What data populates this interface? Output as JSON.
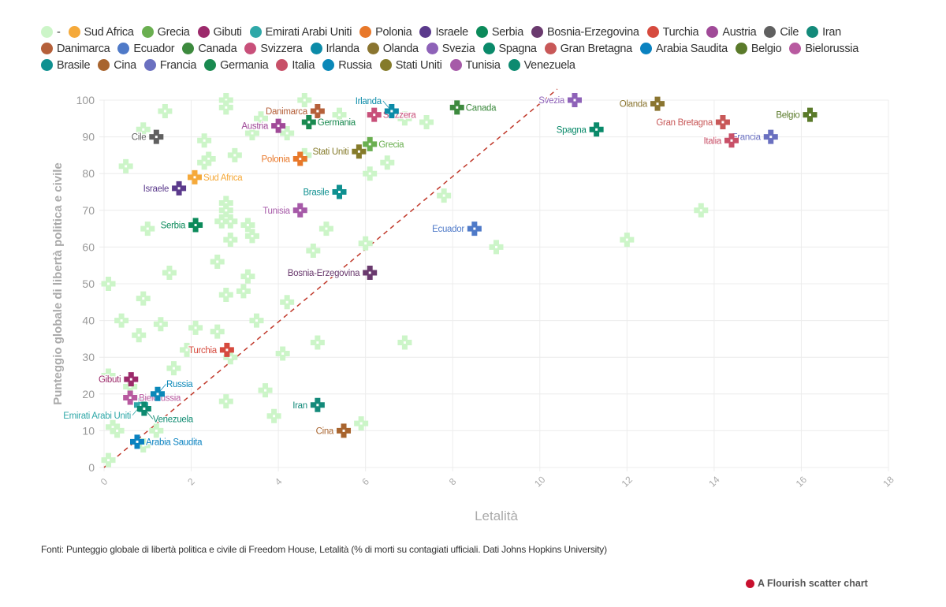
{
  "chart_data": {
    "type": "scatter",
    "xlabel": "Letalità",
    "ylabel": "Punteggio globale di libertà politica e civile",
    "xlim": [
      0,
      18
    ],
    "ylim": [
      0,
      100
    ],
    "xticks": [
      0,
      2,
      4,
      6,
      8,
      10,
      12,
      14,
      16,
      18
    ],
    "yticks": [
      0,
      10,
      20,
      30,
      40,
      50,
      60,
      70,
      80,
      90,
      100
    ],
    "grid": true,
    "legend_position": "top",
    "marker": "cross",
    "reference_line": {
      "style": "dashed",
      "color": "#c0392b",
      "points": [
        [
          0,
          0
        ],
        [
          10.4,
          103
        ]
      ]
    },
    "series": [
      {
        "name": "-",
        "color": "#ccf5c8",
        "labeled": false,
        "points": [
          [
            1.4,
            97
          ],
          [
            2.8,
            100
          ],
          [
            2.8,
            98
          ],
          [
            0.9,
            92
          ],
          [
            2.3,
            89
          ],
          [
            0.5,
            82
          ],
          [
            2.4,
            84
          ],
          [
            2.3,
            83
          ],
          [
            3.0,
            85
          ],
          [
            3.4,
            91
          ],
          [
            3.6,
            95
          ],
          [
            4.2,
            91
          ],
          [
            4.6,
            100
          ],
          [
            4.6,
            85
          ],
          [
            5.4,
            96
          ],
          [
            6.9,
            95
          ],
          [
            7.4,
            94
          ],
          [
            6.1,
            80
          ],
          [
            6.5,
            83
          ],
          [
            7.8,
            74
          ],
          [
            13.7,
            70
          ],
          [
            12.0,
            62
          ],
          [
            9.0,
            60
          ],
          [
            6.0,
            61
          ],
          [
            5.1,
            65
          ],
          [
            4.8,
            59
          ],
          [
            2.8,
            72
          ],
          [
            2.8,
            70
          ],
          [
            2.7,
            67
          ],
          [
            2.9,
            67
          ],
          [
            3.3,
            66
          ],
          [
            3.4,
            63
          ],
          [
            2.9,
            62
          ],
          [
            1.0,
            65
          ],
          [
            2.6,
            56
          ],
          [
            1.5,
            53
          ],
          [
            3.3,
            52
          ],
          [
            0.1,
            50
          ],
          [
            0.9,
            46
          ],
          [
            2.8,
            47
          ],
          [
            3.2,
            48
          ],
          [
            4.2,
            45
          ],
          [
            0.4,
            40
          ],
          [
            1.3,
            39
          ],
          [
            2.1,
            38
          ],
          [
            2.6,
            37
          ],
          [
            3.5,
            40
          ],
          [
            0.8,
            36
          ],
          [
            1.9,
            32
          ],
          [
            4.1,
            31
          ],
          [
            4.9,
            34
          ],
          [
            6.9,
            34
          ],
          [
            1.6,
            27
          ],
          [
            2.9,
            30
          ],
          [
            0.1,
            25
          ],
          [
            0.6,
            22
          ],
          [
            3.7,
            21
          ],
          [
            2.8,
            18
          ],
          [
            0.2,
            11
          ],
          [
            0.3,
            10
          ],
          [
            1.2,
            10
          ],
          [
            3.9,
            14
          ],
          [
            5.9,
            12
          ],
          [
            0.9,
            6
          ],
          [
            0.1,
            2
          ]
        ]
      },
      {
        "name": "Sud Africa",
        "color": "#f5a93a",
        "points": [
          [
            2.08,
            79
          ]
        ]
      },
      {
        "name": "Grecia",
        "color": "#6aaf50",
        "points": [
          [
            6.1,
            88
          ]
        ]
      },
      {
        "name": "Gibuti",
        "color": "#9c2a6b",
        "points": [
          [
            0.62,
            24
          ]
        ]
      },
      {
        "name": "Emirati Arabi Uniti",
        "color": "#2fa8a8",
        "points": [
          [
            0.85,
            17
          ]
        ]
      },
      {
        "name": "Polonia",
        "color": "#e8782a",
        "points": [
          [
            4.5,
            84
          ]
        ]
      },
      {
        "name": "Israele",
        "color": "#5b3a8c",
        "points": [
          [
            1.72,
            76
          ]
        ]
      },
      {
        "name": "Serbia",
        "color": "#0b8a5a",
        "points": [
          [
            2.1,
            66
          ]
        ]
      },
      {
        "name": "Bosnia-Erzegovina",
        "color": "#6a3a6e",
        "points": [
          [
            6.1,
            53
          ]
        ]
      },
      {
        "name": "Turchia",
        "color": "#d64a3e",
        "points": [
          [
            2.82,
            32
          ]
        ]
      },
      {
        "name": "Austria",
        "color": "#a04a98",
        "points": [
          [
            4.0,
            93
          ]
        ]
      },
      {
        "name": "Cile",
        "color": "#606060",
        "points": [
          [
            1.2,
            90
          ]
        ]
      },
      {
        "name": "Iran",
        "color": "#138a7a",
        "points": [
          [
            4.9,
            17
          ]
        ]
      },
      {
        "name": "Danimarca",
        "color": "#b5603a",
        "points": [
          [
            4.9,
            97
          ]
        ]
      },
      {
        "name": "Ecuador",
        "color": "#4f7ac8",
        "points": [
          [
            8.5,
            65
          ]
        ]
      },
      {
        "name": "Canada",
        "color": "#3d8a3e",
        "points": [
          [
            8.1,
            98
          ]
        ]
      },
      {
        "name": "Svizzera",
        "color": "#c8507a",
        "points": [
          [
            6.2,
            96
          ]
        ]
      },
      {
        "name": "Irlanda",
        "color": "#0c8ba8",
        "points": [
          [
            6.6,
            97
          ]
        ]
      },
      {
        "name": "Olanda",
        "color": "#8a7530",
        "points": [
          [
            12.7,
            99
          ]
        ]
      },
      {
        "name": "Svezia",
        "color": "#8e62b8",
        "points": [
          [
            10.8,
            100
          ]
        ]
      },
      {
        "name": "Spagna",
        "color": "#0a8a6a",
        "points": [
          [
            11.3,
            92
          ]
        ]
      },
      {
        "name": "Gran Bretagna",
        "color": "#c85858",
        "points": [
          [
            14.2,
            94
          ]
        ]
      },
      {
        "name": "Arabia Saudita",
        "color": "#0a82c0",
        "points": [
          [
            0.76,
            7
          ]
        ]
      },
      {
        "name": "Belgio",
        "color": "#5a7a2a",
        "points": [
          [
            16.2,
            96
          ]
        ]
      },
      {
        "name": "Bielorussia",
        "color": "#b85aa0",
        "points": [
          [
            0.6,
            19
          ]
        ]
      },
      {
        "name": "Brasile",
        "color": "#0f9090",
        "points": [
          [
            5.4,
            75
          ]
        ]
      },
      {
        "name": "Cina",
        "color": "#a8642e",
        "points": [
          [
            5.5,
            10
          ]
        ]
      },
      {
        "name": "Francia",
        "color": "#6a70c0",
        "points": [
          [
            15.3,
            90
          ]
        ]
      },
      {
        "name": "Germania",
        "color": "#1a8a50",
        "points": [
          [
            4.7,
            94
          ]
        ]
      },
      {
        "name": "Italia",
        "color": "#c85068",
        "points": [
          [
            14.4,
            89
          ]
        ]
      },
      {
        "name": "Russia",
        "color": "#0a88b8",
        "points": [
          [
            1.23,
            20
          ]
        ]
      },
      {
        "name": "Stati Uniti",
        "color": "#857b2a",
        "points": [
          [
            5.85,
            86
          ]
        ]
      },
      {
        "name": "Tunisia",
        "color": "#a65aa8",
        "points": [
          [
            4.5,
            70
          ]
        ]
      },
      {
        "name": "Venezuela",
        "color": "#0d8a70",
        "points": [
          [
            0.92,
            16
          ]
        ]
      }
    ]
  },
  "footer": {
    "source": "Fonti: Punteggio globale di libertà politica e civile di Freedom House, Letalità (% di morti su contagiati ufficiali. Dati Johns Hopkins University)",
    "credit": "A Flourish scatter chart"
  }
}
